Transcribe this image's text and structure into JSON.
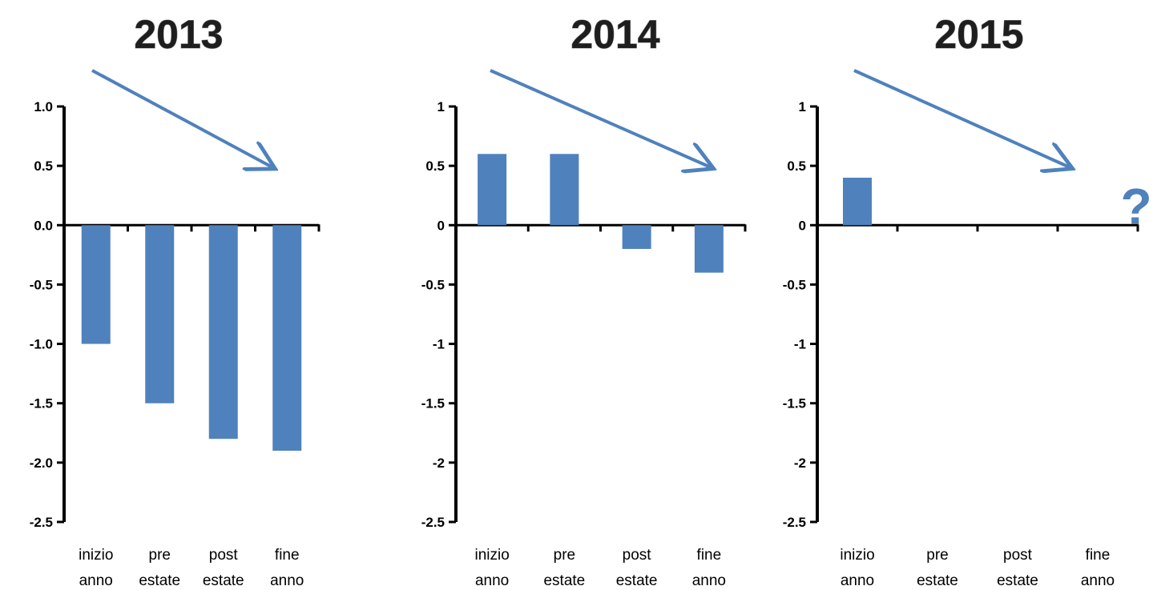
{
  "chart_data": [
    {
      "type": "bar",
      "title": "2013",
      "categories": [
        [
          "inizio",
          "anno"
        ],
        [
          "pre",
          "estate"
        ],
        [
          "post",
          "estate"
        ],
        [
          "fine",
          "anno"
        ]
      ],
      "values": [
        -1.0,
        -1.5,
        -1.8,
        -1.9
      ],
      "ylim": [
        -2.5,
        1.0
      ],
      "yticks": [
        "1.0",
        "0.5",
        "0.0",
        "-0.5",
        "-1.0",
        "-1.5",
        "-2.0",
        "-2.5"
      ],
      "grid": false,
      "bar_color": "#4f81bd",
      "annotation": "downward-trend-arrow"
    },
    {
      "type": "bar",
      "title": "2014",
      "categories": [
        [
          "inizio",
          "anno"
        ],
        [
          "pre",
          "estate"
        ],
        [
          "post",
          "estate"
        ],
        [
          "fine",
          "anno"
        ]
      ],
      "values": [
        0.6,
        0.6,
        -0.2,
        -0.4
      ],
      "ylim": [
        -2.5,
        1.0
      ],
      "yticks": [
        "1",
        "0.5",
        "0",
        "-0.5",
        "-1",
        "-1.5",
        "-2",
        "-2.5"
      ],
      "grid": false,
      "bar_color": "#4f81bd",
      "annotation": "downward-trend-arrow"
    },
    {
      "type": "bar",
      "title": "2015",
      "categories": [
        [
          "inizio",
          "anno"
        ],
        [
          "pre",
          "estate"
        ],
        [
          "post",
          "estate"
        ],
        [
          "fine",
          "anno"
        ]
      ],
      "values": [
        0.4,
        null,
        null,
        null
      ],
      "ylim": [
        -2.5,
        1.0
      ],
      "yticks": [
        "1",
        "0.5",
        "0",
        "-0.5",
        "-1",
        "-1.5",
        "-2",
        "-2.5"
      ],
      "grid": false,
      "bar_color": "#4f81bd",
      "annotation": "downward-trend-arrow",
      "marker_text": "?"
    }
  ],
  "colors": {
    "bars": "#4f81bd",
    "arrow": "#4f81bd",
    "axis": "#000000"
  }
}
